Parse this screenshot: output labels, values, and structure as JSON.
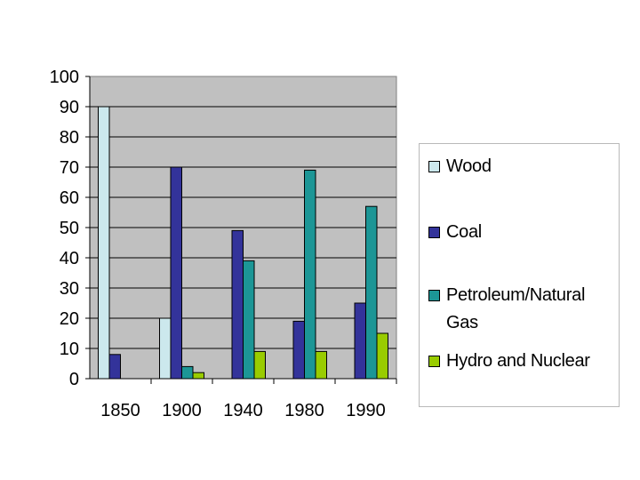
{
  "chart_data": {
    "type": "bar",
    "categories": [
      "1850",
      "1900",
      "1940",
      "1980",
      "1990"
    ],
    "series": [
      {
        "name": "Wood",
        "color": "#cce8ed",
        "values": [
          90,
          20,
          0,
          0,
          0
        ]
      },
      {
        "name": "Coal",
        "color": "#33339a",
        "values": [
          8,
          70,
          49,
          19,
          25
        ]
      },
      {
        "name": "Petroleum/Natural Gas",
        "color": "#1c9696",
        "values": [
          0,
          4,
          39,
          69,
          57
        ]
      },
      {
        "name": "Hydro and Nuclear",
        "color": "#99cc00",
        "values": [
          0,
          2,
          9,
          9,
          15
        ]
      }
    ],
    "ylim": [
      0,
      100
    ],
    "yticks": [
      "0",
      "10",
      "20",
      "30",
      "40",
      "50",
      "60",
      "70",
      "80",
      "90",
      "100"
    ],
    "grid": true,
    "plot_background": "#c0c0c0",
    "legend_position": "right"
  },
  "legend": {
    "items": [
      {
        "label": "Wood",
        "color": "#cce8ed"
      },
      {
        "label": "Coal",
        "color": "#33339a"
      },
      {
        "label": "Petroleum/Natural Gas",
        "color": "#1c9696"
      },
      {
        "label": "Hydro and Nuclear",
        "color": "#99cc00"
      }
    ]
  }
}
